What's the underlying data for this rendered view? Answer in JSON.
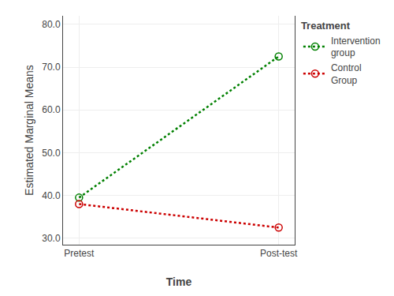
{
  "chart_data": {
    "type": "line",
    "xlabel": "Time",
    "ylabel": "Estimated Marginal Means",
    "categories": [
      "Pretest",
      "Post-test"
    ],
    "series": [
      {
        "name": "Intervention\ngroup",
        "color": "#008000",
        "values": [
          39.5,
          72.5
        ]
      },
      {
        "name": "Control\nGroup",
        "color": "#cc0000",
        "values": [
          38.0,
          32.5
        ]
      }
    ],
    "marker": "circle-open",
    "line_style": "dotted",
    "ylim": [
      28.5,
      82.0
    ],
    "yticks": [
      {
        "value": 30,
        "label": "30.0"
      },
      {
        "value": 40,
        "label": "40.0"
      },
      {
        "value": 50,
        "label": "50.0"
      },
      {
        "value": 60,
        "label": "60.0"
      },
      {
        "value": 70,
        "label": "70.0"
      },
      {
        "value": 80,
        "label": "80.0"
      }
    ],
    "grid": true,
    "legend": "right",
    "legend_title": "Treatment"
  }
}
